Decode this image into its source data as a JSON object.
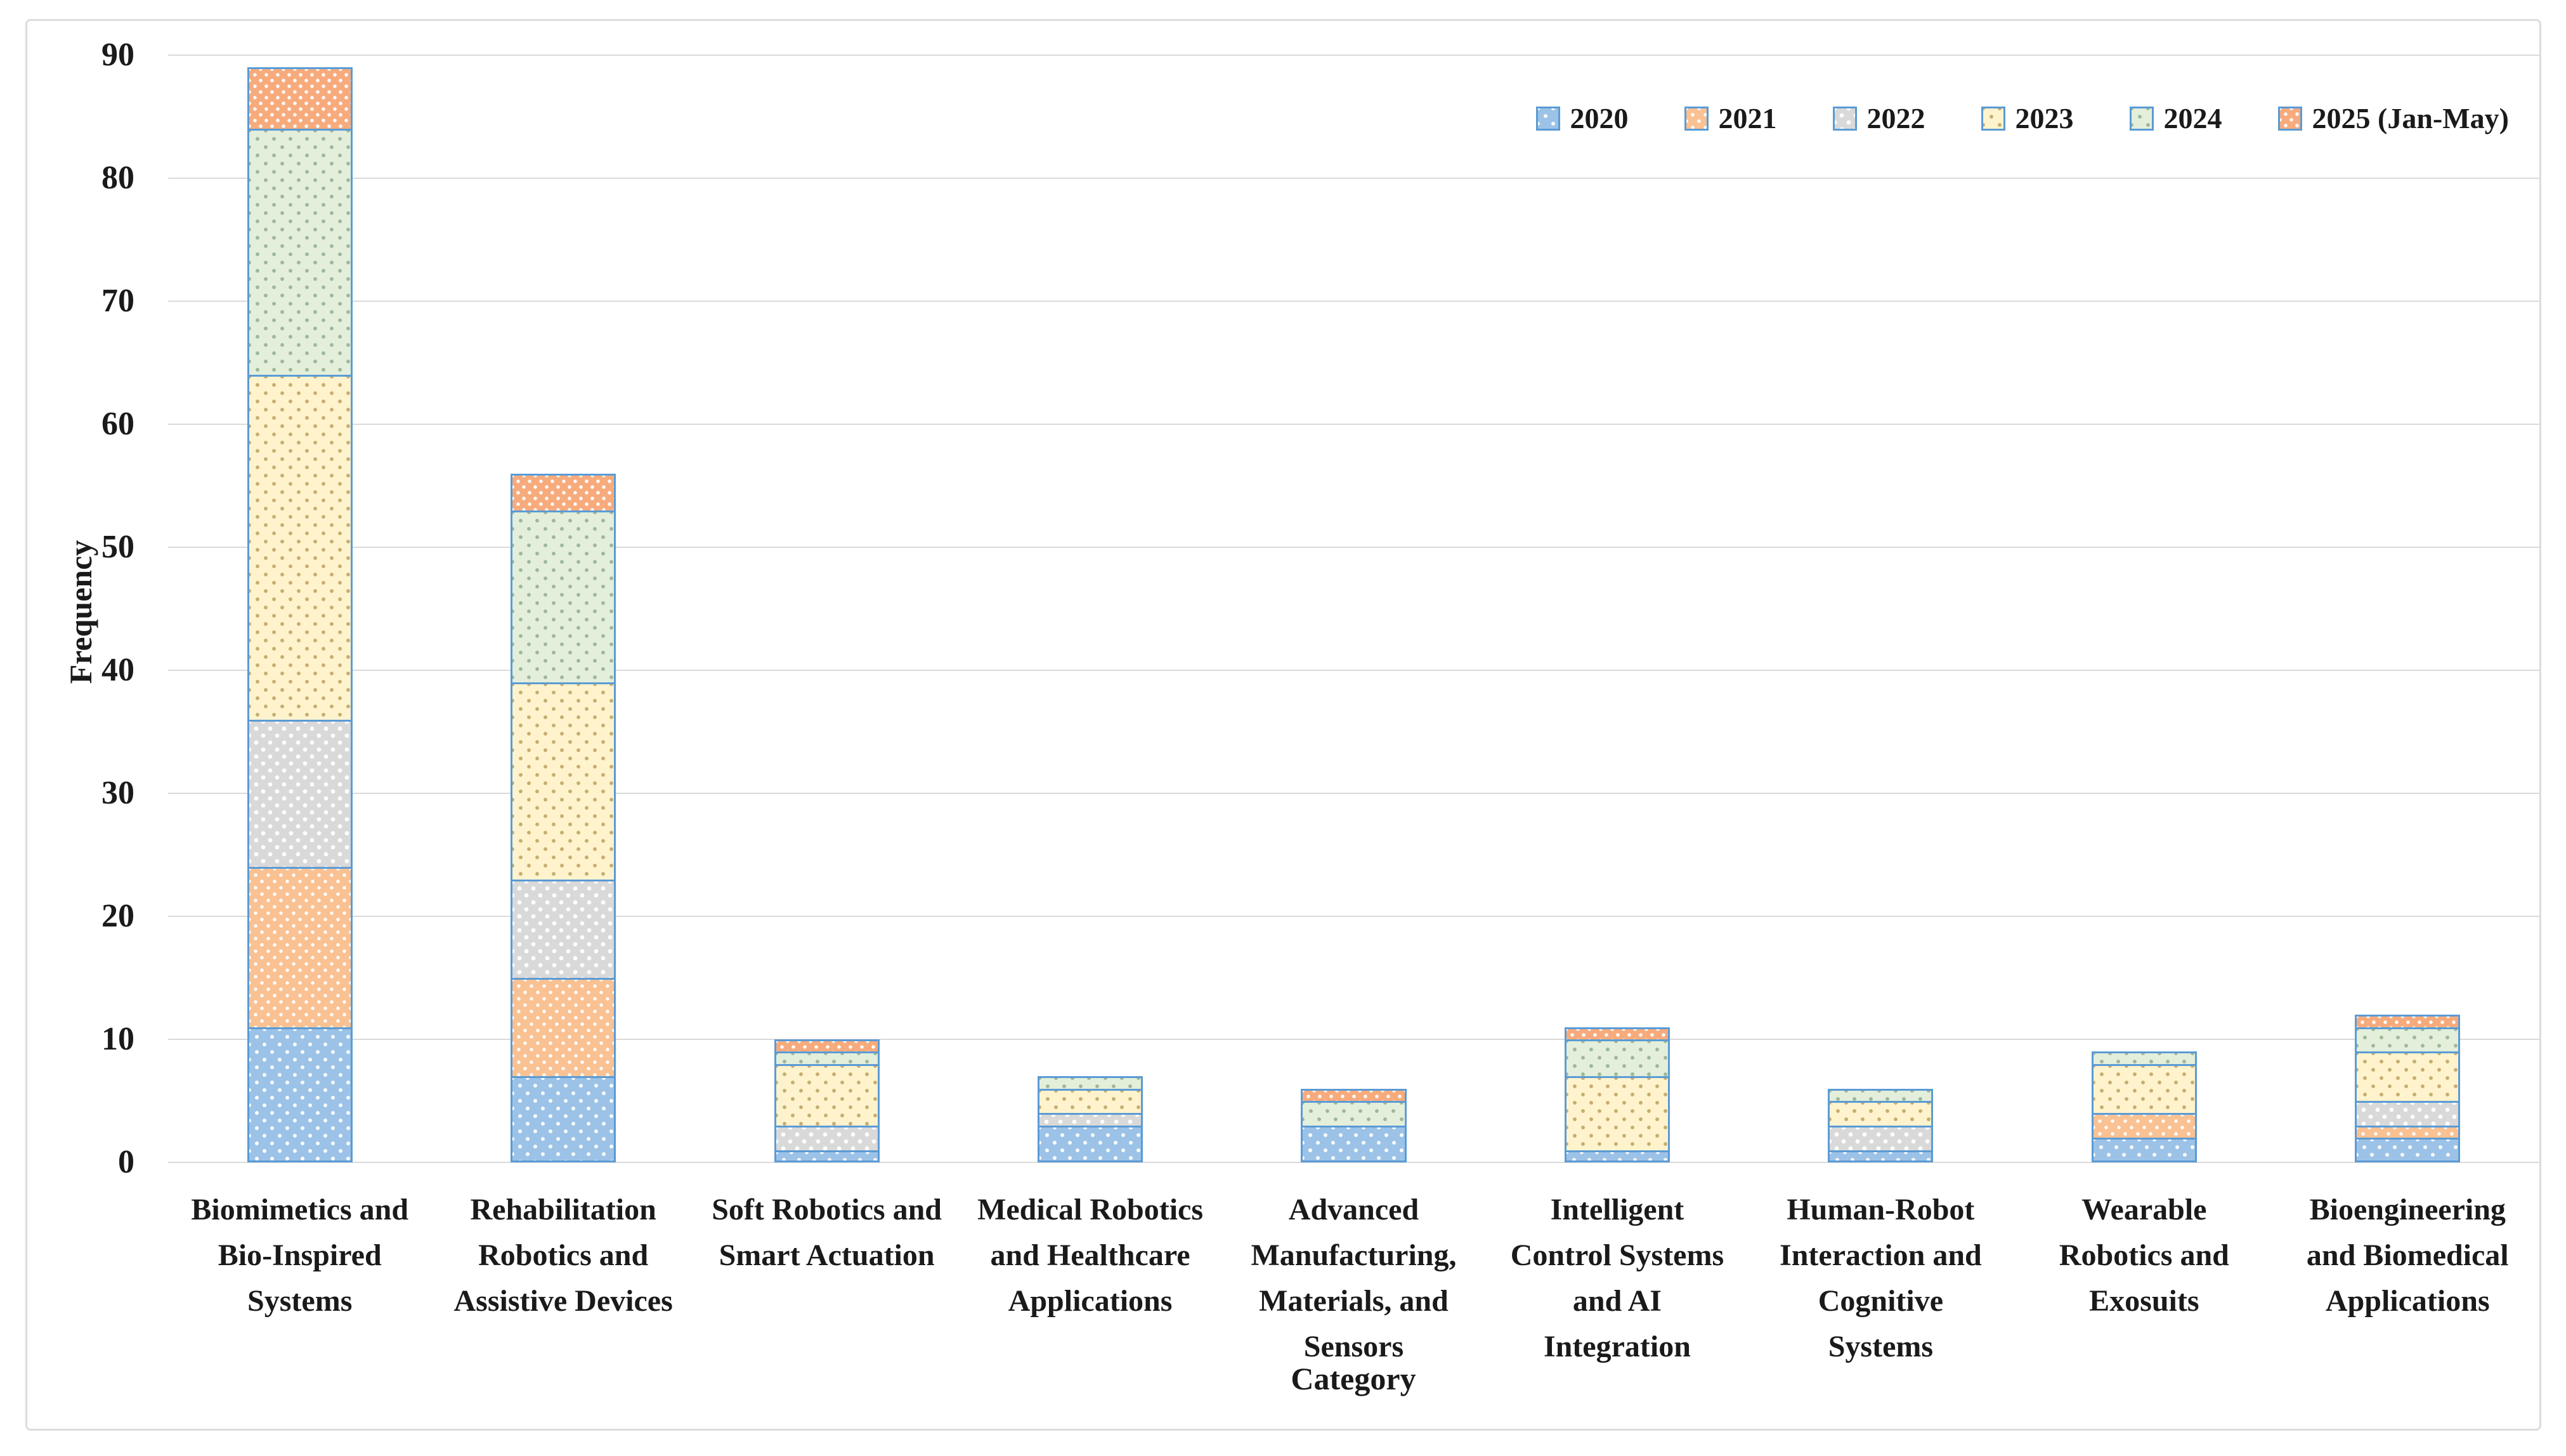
{
  "figure": {
    "y_ticks": [
      0,
      10,
      20,
      30,
      40,
      50,
      60,
      70,
      80,
      90
    ]
  },
  "chart_data": {
    "type": "bar",
    "stacked": true,
    "title": "",
    "xlabel": "Category",
    "ylabel": "Frequency",
    "ylim": [
      0,
      90
    ],
    "grid": true,
    "legend_position": "top-right",
    "categories": [
      "Biomimetics and Bio-Inspired Systems",
      "Rehabilitation Robotics and Assistive Devices",
      "Soft Robotics and Smart Actuation",
      "Medical Robotics and Healthcare Applications",
      "Advanced Manufacturing, Materials, and Sensors",
      "Intelligent Control Systems and AI Integration",
      "Human-Robot Interaction and Cognitive Systems",
      "Wearable Robotics and Exosuits",
      "Bioengineering and Biomedical Applications"
    ],
    "category_label_lines": [
      [
        "Biomimetics and",
        "Bio-Inspired",
        "Systems"
      ],
      [
        "Rehabilitation",
        "Robotics and",
        "Assistive Devices"
      ],
      [
        "Soft Robotics and",
        "Smart Actuation"
      ],
      [
        "Medical Robotics",
        "and Healthcare",
        "Applications"
      ],
      [
        "Advanced",
        "Manufacturing,",
        "Materials, and",
        "Sensors"
      ],
      [
        "Intelligent",
        "Control Systems",
        "and AI",
        "Integration"
      ],
      [
        "Human-Robot",
        "Interaction and",
        "Cognitive",
        "Systems"
      ],
      [
        "Wearable",
        "Robotics and",
        "Exosuits"
      ],
      [
        "Bioengineering",
        "and Biomedical",
        "Applications"
      ]
    ],
    "series": [
      {
        "name": "2020",
        "color": "#9cc3e7",
        "values": [
          11,
          7,
          1,
          3,
          3,
          1,
          1,
          2,
          2
        ]
      },
      {
        "name": "2021",
        "color": "#fac192",
        "values": [
          13,
          8,
          0,
          0,
          0,
          0,
          0,
          2,
          1
        ]
      },
      {
        "name": "2022",
        "color": "#d9d9d9",
        "values": [
          12,
          8,
          2,
          1,
          0,
          0,
          2,
          0,
          2
        ]
      },
      {
        "name": "2023",
        "color": "#fef3cd",
        "values": [
          28,
          16,
          5,
          2,
          0,
          6,
          2,
          4,
          4
        ]
      },
      {
        "name": "2024",
        "color": "#e3efdb",
        "values": [
          20,
          14,
          1,
          1,
          2,
          3,
          1,
          1,
          2
        ]
      },
      {
        "name": "2025 (Jan-May)",
        "color": "#f7ab7c",
        "values": [
          5,
          3,
          1,
          0,
          1,
          1,
          0,
          0,
          1
        ]
      }
    ],
    "totals": [
      89,
      56,
      10,
      7,
      6,
      11,
      6,
      9,
      12
    ],
    "segment_border_color": "#5b9bd5",
    "gridline_color": "#dadada"
  }
}
